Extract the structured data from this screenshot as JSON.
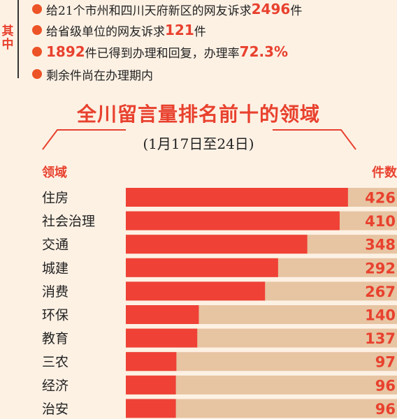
{
  "side_label": "其中",
  "bullets": [
    {
      "pre": "给21个市州和四川天府新区的网友诉求",
      "num": "2496",
      "post": "件"
    },
    {
      "pre": "给省级单位的网友诉求",
      "num": "121",
      "post": "件"
    },
    {
      "pre": "",
      "num": "1892",
      "post": "件已得到办理和回复，办理率",
      "num2": "72.3%"
    },
    {
      "pre": "剩余件尚在办理期内",
      "num": "",
      "post": ""
    }
  ],
  "chart_data": {
    "type": "bar",
    "orientation": "horizontal",
    "title": "全川留言量排名前十的领域",
    "subtitle": "(1月17日至24日)",
    "category_header": "领域",
    "value_header": "件数",
    "categories": [
      "住房",
      "社会治理",
      "交通",
      "城建",
      "消费",
      "环保",
      "教育",
      "三农",
      "经济",
      "治安"
    ],
    "values": [
      426,
      410,
      348,
      292,
      267,
      140,
      137,
      97,
      96,
      96
    ],
    "xlim": [
      0,
      520
    ],
    "colors": {
      "bar": "#ef4136",
      "track": "#e7c4a2",
      "value_text": "#e8412e"
    }
  }
}
